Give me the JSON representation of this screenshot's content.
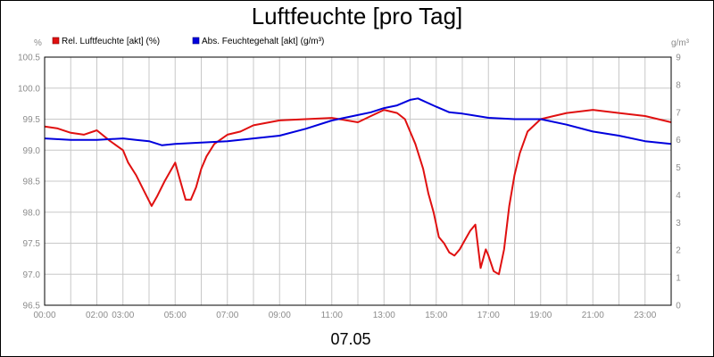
{
  "chart_data": {
    "type": "line",
    "title": "Luftfeuchte [pro Tag]",
    "date_label": "07.05",
    "y_left_unit": "%",
    "y_right_unit": "g/m³",
    "ylim_left": [
      96.5,
      100.5
    ],
    "ylim_right": [
      0,
      9
    ],
    "y_left_ticks": [
      "100.5",
      "100.0",
      "99.5",
      "99.0",
      "98.5",
      "98.0",
      "97.5",
      "97.0",
      "96.5"
    ],
    "y_right_ticks": [
      "9",
      "8",
      "7",
      "6",
      "5",
      "4",
      "3",
      "2",
      "1",
      "0"
    ],
    "x_range_hours": [
      0,
      24
    ],
    "x_tick_labels": [
      "00:00",
      "02:00",
      "03:00",
      "05:00",
      "07:00",
      "09:00",
      "11:00",
      "13:00",
      "15:00",
      "17:00",
      "19:00",
      "21:00",
      "23:00"
    ],
    "grid": true,
    "legend_position": "top-left",
    "series": [
      {
        "name": "Rel. Luftfeuchte [akt] (%)",
        "axis": "left",
        "color": "#e01010",
        "hours": [
          0,
          0.5,
          1,
          1.5,
          2,
          2.5,
          3,
          3.2,
          3.5,
          3.8,
          4.1,
          4.3,
          4.6,
          4.8,
          5,
          5.2,
          5.4,
          5.6,
          5.8,
          6,
          6.2,
          6.5,
          7,
          7.5,
          8,
          9,
          10,
          11,
          12,
          12.5,
          13,
          13.5,
          13.8,
          14,
          14.2,
          14.5,
          14.7,
          14.9,
          15,
          15.1,
          15.3,
          15.5,
          15.7,
          15.9,
          16.1,
          16.3,
          16.5,
          16.7,
          16.9,
          17,
          17.2,
          17.4,
          17.6,
          17.8,
          18,
          18.2,
          18.5,
          19,
          19.5,
          20,
          21,
          22,
          23,
          23.5,
          24
        ],
        "values": [
          99.38,
          99.35,
          99.28,
          99.25,
          99.32,
          99.15,
          99.0,
          98.8,
          98.6,
          98.35,
          98.1,
          98.25,
          98.5,
          98.65,
          98.8,
          98.5,
          98.2,
          98.2,
          98.4,
          98.7,
          98.9,
          99.1,
          99.25,
          99.3,
          99.4,
          99.48,
          99.5,
          99.52,
          99.45,
          99.55,
          99.65,
          99.6,
          99.5,
          99.3,
          99.1,
          98.7,
          98.3,
          98.0,
          97.8,
          97.6,
          97.5,
          97.35,
          97.3,
          97.4,
          97.55,
          97.7,
          97.8,
          97.1,
          97.4,
          97.3,
          97.05,
          97.0,
          97.4,
          98.1,
          98.6,
          98.95,
          99.3,
          99.5,
          99.55,
          99.6,
          99.65,
          99.6,
          99.55,
          99.5,
          99.45
        ]
      },
      {
        "name": "Abs. Feuchtegehalt [akt] (g/m³)",
        "axis": "right",
        "color": "#0000dd",
        "hours": [
          0,
          1,
          2,
          3,
          3.5,
          4,
          4.5,
          5,
          6,
          7,
          8,
          9,
          10,
          11,
          12,
          12.5,
          13,
          13.5,
          14,
          14.3,
          15,
          15.5,
          16,
          17,
          18,
          19,
          20,
          21,
          22,
          23,
          24
        ],
        "values": [
          6.05,
          6.0,
          6.0,
          6.05,
          6.0,
          5.95,
          5.8,
          5.85,
          5.9,
          5.95,
          6.05,
          6.15,
          6.4,
          6.7,
          6.9,
          7.0,
          7.15,
          7.25,
          7.45,
          7.5,
          7.2,
          7.0,
          6.95,
          6.8,
          6.75,
          6.75,
          6.55,
          6.3,
          6.15,
          5.95,
          5.85
        ]
      }
    ]
  }
}
